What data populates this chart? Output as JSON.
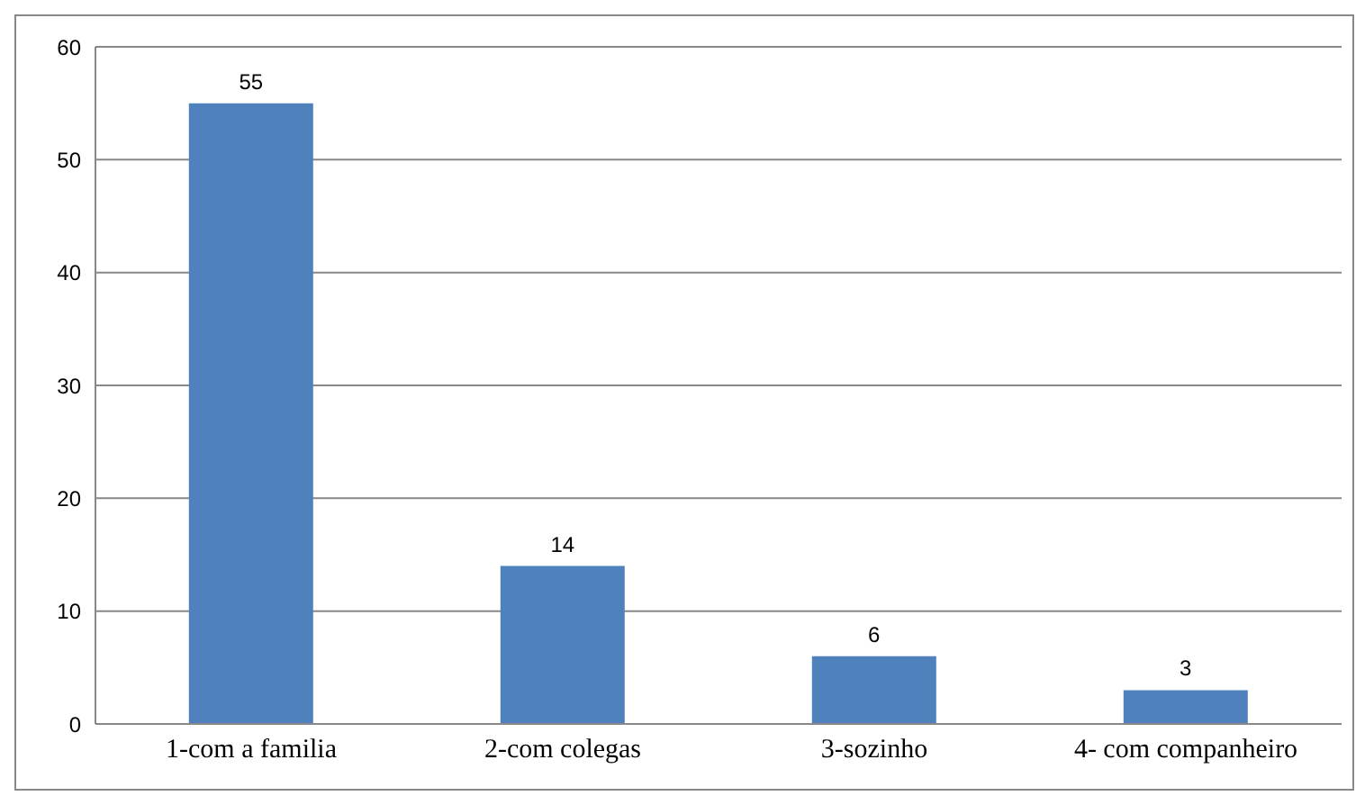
{
  "chart_data": {
    "type": "bar",
    "categories": [
      "1-com a familia",
      "2-com colegas",
      "3-sozinho",
      "4- com companheiro"
    ],
    "values": [
      55,
      14,
      6,
      3
    ],
    "color": "#4f81bd",
    "ylim": [
      0,
      60
    ],
    "yticks": [
      0,
      10,
      20,
      30,
      40,
      50,
      60
    ],
    "grid": "y",
    "data_labels": true
  }
}
